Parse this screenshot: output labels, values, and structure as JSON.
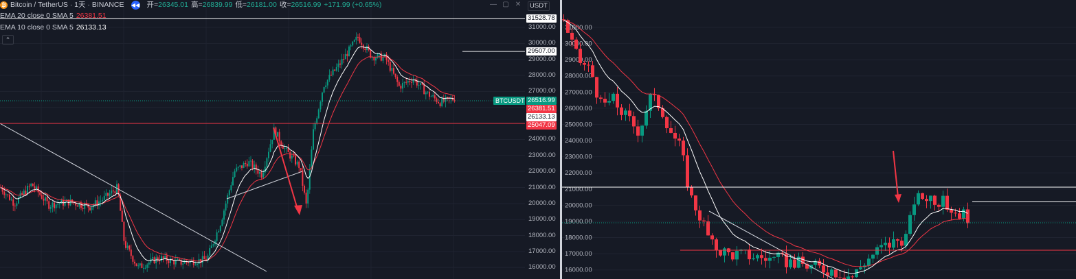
{
  "left_chart": {
    "symbol_title": "Bitcoin / TetherUS · 1天 · BINANCE",
    "ohlc": {
      "open_label": "开=",
      "open": "26345.01",
      "high_label": "高=",
      "high": "26839.99",
      "low_label": "低=",
      "low": "26181.00",
      "close_label": "收=",
      "close": "26516.99",
      "change": "+171.99 (+0.65%)"
    },
    "indicators": [
      {
        "label": "EMA 20 close 0 SMA 5",
        "value": "26381.51",
        "color": "#f23645"
      },
      {
        "label": "EMA 10 close 0 SMA 5",
        "value": "26133.13",
        "color": "#ffffff"
      }
    ],
    "currency": "USDT",
    "symbol_tag": "BTCUSDT",
    "price_ticks": [
      "31000.00",
      "30000.00",
      "29000.00",
      "28000.00",
      "27000.00",
      "26000.00",
      "25000.00",
      "24000.00",
      "23000.00",
      "22000.00",
      "21000.00",
      "20000.00",
      "19000.00",
      "18000.00",
      "17000.00",
      "16000.00"
    ],
    "price_tags": {
      "top_line": "31528.78",
      "mid_line": "29507.00",
      "last": "26516.99",
      "ema20": "26381.51",
      "ema10": "26133.13",
      "support": "25047.09"
    },
    "colors": {
      "up": "#089981",
      "down": "#f23645",
      "ema10": "#ffffff",
      "ema20": "#f23645"
    }
  },
  "right_chart": {
    "price_ticks": [
      "31000.00",
      "30000.00",
      "29000.00",
      "28000.00",
      "27000.00",
      "26000.00",
      "25000.00",
      "24000.00",
      "23000.00",
      "22000.00",
      "21000.00",
      "20000.00",
      "19000.00",
      "18000.00",
      "17000.00",
      "16000.00"
    ]
  }
}
